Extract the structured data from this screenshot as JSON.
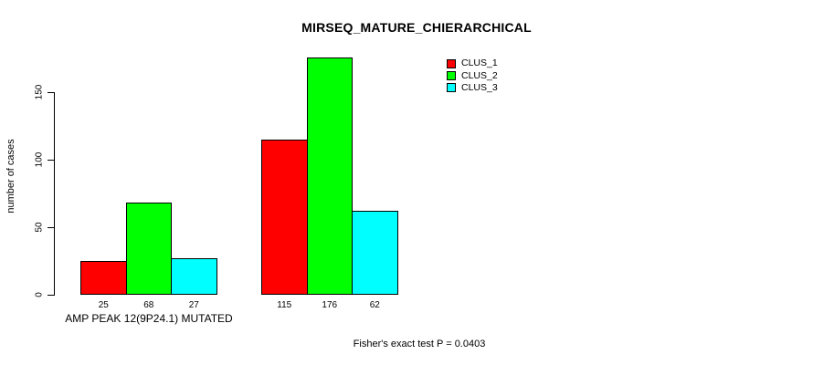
{
  "chart_data": {
    "type": "bar",
    "title": "MIRSEQ_MATURE_CHIERARCHICAL",
    "ylabel": "number of cases",
    "categories": [
      "AMP PEAK 12(9P24.1) MUTATED",
      ""
    ],
    "series": [
      {
        "name": "CLUS_1",
        "color": "#ff0000",
        "values": [
          25,
          115
        ]
      },
      {
        "name": "CLUS_2",
        "color": "#00ff00",
        "values": [
          68,
          176
        ]
      },
      {
        "name": "CLUS_3",
        "color": "#00ffff",
        "values": [
          27,
          62
        ]
      }
    ],
    "yticks": [
      0,
      50,
      100,
      150
    ],
    "ylim": [
      0,
      176
    ],
    "show_values": true,
    "grid": false,
    "legend_position": "top-right",
    "annotation": "Fisher's exact test P = 0.0403",
    "axis_color": "#000000",
    "text_color": "#000000",
    "background_color": "#ffffff"
  }
}
